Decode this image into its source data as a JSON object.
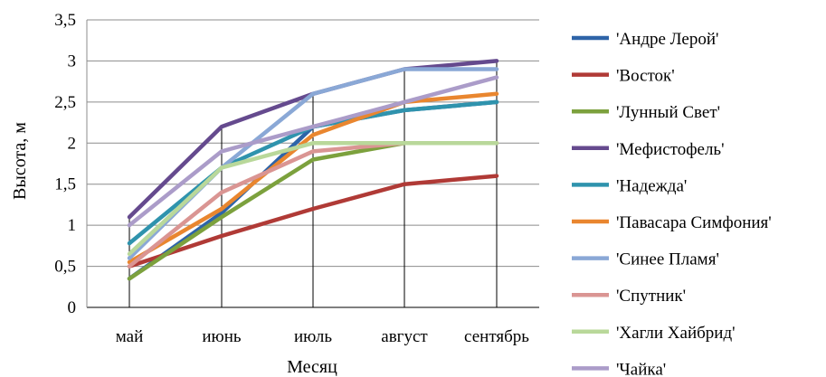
{
  "chart_data": {
    "type": "line",
    "title": "",
    "xlabel": "Месяц",
    "ylabel": "Высота, м",
    "categories": [
      "май",
      "июнь",
      "июль",
      "август",
      "сентябрь"
    ],
    "ylim": [
      0,
      3.5
    ],
    "yticks": [
      "0",
      "0,5",
      "1",
      "1,5",
      "2",
      "2,5",
      "3",
      "3,5"
    ],
    "grid": "horizontal",
    "legend_position": "right",
    "series": [
      {
        "name": "'Андре  Лерой'",
        "color": "#2e64a8",
        "values": [
          0.35,
          1.15,
          2.2,
          2.4,
          2.5
        ]
      },
      {
        "name": "'Восток'",
        "color": "#b03a36",
        "values": [
          0.5,
          0.87,
          1.2,
          1.5,
          1.6
        ]
      },
      {
        "name": "'Лунный Свет'",
        "color": "#7ca13d",
        "values": [
          0.35,
          1.1,
          1.8,
          2.0,
          2.0
        ]
      },
      {
        "name": "'Мефистофель'",
        "color": "#654a8e",
        "values": [
          1.1,
          2.2,
          2.6,
          2.9,
          3.0
        ]
      },
      {
        "name": "'Надежда'",
        "color": "#2f93ad",
        "values": [
          0.78,
          1.7,
          2.2,
          2.4,
          2.5
        ]
      },
      {
        "name": "'Павасара Симфония'",
        "color": "#e9862f",
        "values": [
          0.55,
          1.2,
          2.1,
          2.5,
          2.6
        ]
      },
      {
        "name": "'Синее Пламя'",
        "color": "#8aa8d6",
        "values": [
          0.6,
          1.7,
          2.6,
          2.9,
          2.9
        ]
      },
      {
        "name": "'Спутник'",
        "color": "#da9593",
        "values": [
          0.5,
          1.4,
          1.9,
          2.0,
          2.0
        ]
      },
      {
        "name": "'Хагли Хайбрид'",
        "color": "#b9d89a",
        "values": [
          0.65,
          1.7,
          2.0,
          2.0,
          2.0
        ]
      },
      {
        "name": "'Чайка'",
        "color": "#ab9cc9",
        "values": [
          1.0,
          1.9,
          2.2,
          2.5,
          2.8
        ]
      }
    ]
  }
}
